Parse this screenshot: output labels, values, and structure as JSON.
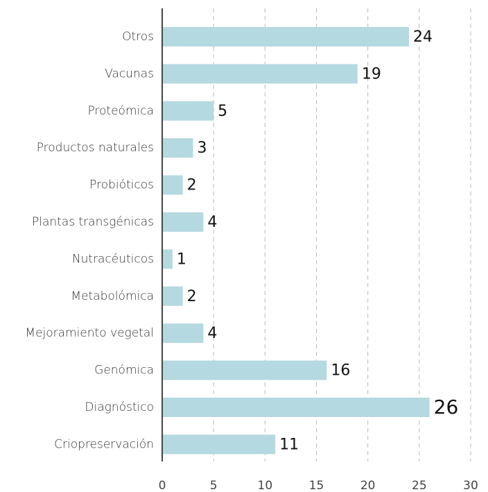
{
  "chart_data": {
    "type": "bar",
    "orientation": "horizontal",
    "categories": [
      "Otros",
      "Vacunas",
      "Proteómica",
      "Productos naturales",
      "Probióticos",
      "Plantas transgénicas",
      "Nutracéuticos",
      "Metabolómica",
      "Mejoramiento vegetal",
      "Genómica",
      "Diagnóstico",
      "Criopreservación"
    ],
    "values": [
      24,
      19,
      5,
      3,
      2,
      4,
      1,
      2,
      4,
      16,
      26,
      11
    ],
    "color": "#b5d9e0",
    "xlim": [
      0,
      30
    ],
    "xticks": [
      0,
      5,
      10,
      15,
      20,
      25,
      30
    ],
    "grid": true
  }
}
